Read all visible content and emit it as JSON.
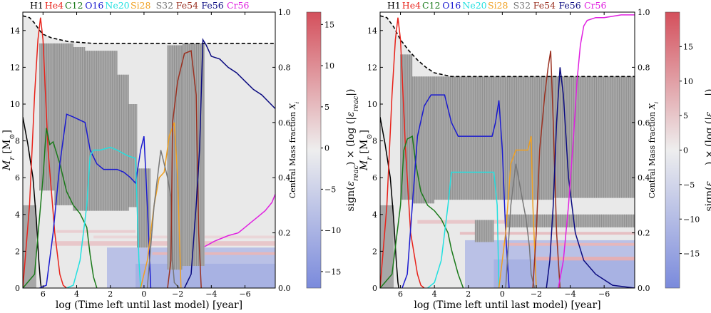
{
  "chart_data": [
    {
      "type": "line",
      "panel": "left",
      "xlabel": "log (Time left until last model) [year]",
      "ylabel": "M_r [M_⊙]",
      "ylabel_right": "Central Mass fraction X_i",
      "colorbar_label": "sign(ε_reac) × (log (|ε_reac|)",
      "xlim": [
        7.2,
        -7.8
      ],
      "ylim": [
        0,
        15
      ],
      "y2lim": [
        0,
        1
      ],
      "cbar_lim": [
        -17,
        16.5
      ],
      "xticks": [
        6,
        4,
        2,
        0,
        -2,
        -4,
        -6
      ],
      "yticks": [
        0,
        2,
        4,
        6,
        8,
        10,
        12,
        14
      ],
      "y2ticks": [
        "0.0",
        "0.2",
        "0.4",
        "0.6",
        "0.8",
        "1.0"
      ],
      "cbar_ticks": [
        15,
        10,
        5,
        0,
        -5,
        -10,
        -15
      ],
      "grid": false,
      "legend_position": "top",
      "legend": [
        "H1",
        "He4",
        "C12",
        "O16",
        "Ne20",
        "Si28",
        "S32",
        "Fe54",
        "Fe56",
        "Cr56"
      ],
      "total_mass": [
        [
          7.2,
          14.8
        ],
        [
          6.8,
          14.7
        ],
        [
          6.5,
          14.4
        ],
        [
          6.2,
          14.0
        ],
        [
          6.0,
          13.8
        ],
        [
          5.5,
          13.6
        ],
        [
          4.5,
          13.4
        ],
        [
          3.0,
          13.3
        ],
        [
          0,
          13.3
        ],
        [
          -3,
          13.3
        ],
        [
          -6,
          13.3
        ],
        [
          -7.8,
          13.3
        ]
      ],
      "series": [
        {
          "name": "H1",
          "color": "#000000",
          "x": [
            7.2,
            6.9,
            6.6,
            6.4,
            6.25,
            6.15,
            6.1
          ],
          "y": [
            0.62,
            0.52,
            0.4,
            0.25,
            0.1,
            0.02,
            0
          ]
        },
        {
          "name": "He4",
          "color": "#e8221a",
          "x": [
            7.2,
            6.8,
            6.5,
            6.3,
            6.15,
            6.0,
            5.7,
            5.3,
            5.0,
            4.8,
            4.6
          ],
          "y": [
            0.0,
            0.3,
            0.7,
            0.9,
            0.98,
            0.9,
            0.5,
            0.2,
            0.05,
            0.01,
            0
          ]
        },
        {
          "name": "C12",
          "color": "#1a7a1a",
          "x": [
            7.2,
            6.5,
            6.0,
            5.8,
            5.6,
            5.4,
            5.0,
            4.6,
            4.2,
            3.8,
            3.4,
            3.2,
            3.0,
            2.8
          ],
          "y": [
            0,
            0.05,
            0.4,
            0.58,
            0.52,
            0.53,
            0.45,
            0.35,
            0.3,
            0.27,
            0.22,
            0.12,
            0.04,
            0
          ]
        },
        {
          "name": "O16",
          "color": "#1a1ad0",
          "x": [
            6.2,
            5.8,
            5.4,
            5.0,
            4.6,
            4.2,
            3.5,
            3.2,
            2.8,
            2.4,
            2.0,
            1.6,
            1.2,
            0.8,
            0.5,
            0.2,
            0.0,
            -0.2,
            -0.4
          ],
          "y": [
            0,
            0.01,
            0.2,
            0.45,
            0.63,
            0.62,
            0.6,
            0.5,
            0.45,
            0.43,
            0.43,
            0.43,
            0.42,
            0.4,
            0.38,
            0.5,
            0.55,
            0.3,
            0
          ]
        },
        {
          "name": "Ne20",
          "color": "#22e0e0",
          "x": [
            4.6,
            4.2,
            3.8,
            3.4,
            3.2,
            3.0,
            2.6,
            2.0,
            1.6,
            1.0,
            0.5,
            0.3,
            0.2
          ],
          "y": [
            0,
            0.01,
            0.1,
            0.3,
            0.48,
            0.5,
            0.5,
            0.51,
            0.5,
            0.48,
            0.47,
            0.1,
            0
          ]
        },
        {
          "name": "Si28",
          "color": "#f0a020",
          "x": [
            0.2,
            -0.2,
            -0.6,
            -0.9,
            -1.2,
            -1.5,
            -1.8,
            -2.0,
            -2.2
          ],
          "y": [
            0,
            0.1,
            0.3,
            0.4,
            0.42,
            0.55,
            0.6,
            0.4,
            0
          ]
        },
        {
          "name": "S32",
          "color": "#777777",
          "x": [
            -0.2,
            -0.6,
            -1.0,
            -1.4,
            -1.6,
            -1.7,
            -1.8,
            -2.1
          ],
          "y": [
            0,
            0.3,
            0.5,
            0.4,
            0.33,
            0.1,
            0.02,
            0
          ]
        },
        {
          "name": "Fe54",
          "color": "#9a3020",
          "x": [
            -1.4,
            -1.6,
            -1.7,
            -2.0,
            -2.4,
            -2.8,
            -3.1,
            -3.25,
            -3.4
          ],
          "y": [
            0,
            0.1,
            0.6,
            0.75,
            0.85,
            0.86,
            0.7,
            0.2,
            0
          ]
        },
        {
          "name": "Fe56",
          "color": "#0a0a80",
          "x": [
            -2.4,
            -2.8,
            -3.1,
            -3.3,
            -3.5,
            -3.7,
            -4.0,
            -4.5,
            -5.0,
            -5.5,
            -6.0,
            -6.5,
            -7.0,
            -7.8
          ],
          "y": [
            0,
            0.05,
            0.3,
            0.5,
            0.9,
            0.88,
            0.84,
            0.83,
            0.8,
            0.78,
            0.75,
            0.72,
            0.7,
            0.65
          ]
        },
        {
          "name": "Cr56",
          "color": "#e020e0",
          "x": [
            -3.6,
            -4.2,
            -5.0,
            -5.6,
            -6.0,
            -6.4,
            -6.8,
            -7.2,
            -7.6,
            -7.8
          ],
          "y": [
            0.15,
            0.17,
            0.19,
            0.2,
            0.22,
            0.24,
            0.26,
            0.28,
            0.31,
            0.34
          ]
        }
      ]
    },
    {
      "type": "line",
      "panel": "right",
      "xlabel": "log (Time left until last model) [year]",
      "ylabel": "M_r [M_⊙]",
      "ylabel_right": "Central Mass fraction X_i",
      "colorbar_label": "sign(ε_reac) × (log (|ε_reac|)",
      "xlim": [
        7.2,
        -7.8
      ],
      "ylim": [
        0,
        15
      ],
      "y2lim": [
        0,
        1
      ],
      "cbar_lim": [
        -20,
        20
      ],
      "xticks": [
        6,
        4,
        2,
        0,
        -2,
        -4,
        -6
      ],
      "yticks": [
        0,
        2,
        4,
        6,
        8,
        10,
        12,
        14
      ],
      "y2ticks": [
        "0.0",
        "0.2",
        "0.4",
        "0.6",
        "0.8",
        "1.0"
      ],
      "cbar_ticks": [
        15,
        10,
        5,
        0,
        -5,
        -10,
        -15
      ],
      "grid": false,
      "legend_position": "top",
      "legend": [
        "H1",
        "He4",
        "C12",
        "O16",
        "Ne20",
        "Si28",
        "S32",
        "Fe54",
        "Fe56",
        "Cr56"
      ],
      "total_mass": [
        [
          7.2,
          14.8
        ],
        [
          6.8,
          14.7
        ],
        [
          6.4,
          14.2
        ],
        [
          6.0,
          13.5
        ],
        [
          5.5,
          12.9
        ],
        [
          5.0,
          12.4
        ],
        [
          4.5,
          12.0
        ],
        [
          4.0,
          11.7
        ],
        [
          3.0,
          11.5
        ],
        [
          1.0,
          11.5
        ],
        [
          -3,
          11.5
        ],
        [
          -7.8,
          11.5
        ]
      ],
      "series": [
        {
          "name": "H1",
          "color": "#000000",
          "x": [
            7.2,
            6.9,
            6.6,
            6.4,
            6.25,
            6.15,
            6.1
          ],
          "y": [
            0.62,
            0.52,
            0.4,
            0.25,
            0.1,
            0.02,
            0
          ]
        },
        {
          "name": "He4",
          "color": "#e8221a",
          "x": [
            7.2,
            6.8,
            6.5,
            6.3,
            6.15,
            6.0,
            5.7,
            5.4,
            5.0,
            4.8,
            4.6
          ],
          "y": [
            0.0,
            0.3,
            0.7,
            0.9,
            0.98,
            0.9,
            0.5,
            0.2,
            0.05,
            0.01,
            0
          ]
        },
        {
          "name": "C12",
          "color": "#1a7a1a",
          "x": [
            7.2,
            6.5,
            6.0,
            5.8,
            5.6,
            5.3,
            5.1,
            4.8,
            4.4,
            4.0,
            3.6,
            3.2,
            3.0,
            2.6,
            2.3
          ],
          "y": [
            0,
            0.05,
            0.3,
            0.5,
            0.54,
            0.55,
            0.45,
            0.35,
            0.3,
            0.28,
            0.25,
            0.2,
            0.14,
            0.05,
            0
          ]
        },
        {
          "name": "O16",
          "color": "#1a1ad0",
          "x": [
            5.9,
            5.6,
            5.3,
            5.0,
            4.6,
            4.2,
            3.8,
            3.4,
            3.0,
            2.6,
            2.0,
            1.5,
            1.0,
            0.6,
            0.4,
            0.2,
            0.0,
            -0.2,
            -0.4
          ],
          "y": [
            0,
            0.05,
            0.3,
            0.55,
            0.66,
            0.7,
            0.7,
            0.7,
            0.6,
            0.55,
            0.55,
            0.55,
            0.55,
            0.55,
            0.6,
            0.68,
            0.5,
            0.2,
            0
          ]
        },
        {
          "name": "Ne20",
          "color": "#22e0e0",
          "x": [
            4.4,
            4.0,
            3.6,
            3.2,
            3.0,
            2.6,
            2.2,
            1.6,
            1.0,
            0.5,
            0.3,
            0.2
          ],
          "y": [
            0,
            0.02,
            0.1,
            0.3,
            0.42,
            0.42,
            0.42,
            0.42,
            0.42,
            0.42,
            0.3,
            0
          ]
        },
        {
          "name": "Si28",
          "color": "#f0a020",
          "x": [
            0.2,
            -0.2,
            -0.5,
            -0.8,
            -1.2,
            -1.5,
            -1.7,
            -1.8,
            -2.0
          ],
          "y": [
            0,
            0.2,
            0.45,
            0.5,
            0.5,
            0.5,
            0.55,
            0.3,
            0
          ]
        },
        {
          "name": "S32",
          "color": "#777777",
          "x": [
            -0.2,
            -0.5,
            -0.8,
            -1.1,
            -1.4,
            -1.6,
            -1.7,
            -1.9
          ],
          "y": [
            0,
            0.3,
            0.45,
            0.35,
            0.25,
            0.15,
            0.05,
            0
          ]
        },
        {
          "name": "Fe54",
          "color": "#9a3020",
          "x": [
            -1.8,
            -2.0,
            -2.2,
            -2.5,
            -2.7,
            -2.85,
            -3.0,
            -3.2,
            -3.4
          ],
          "y": [
            0,
            0.2,
            0.5,
            0.7,
            0.8,
            0.86,
            0.6,
            0.2,
            0
          ]
        },
        {
          "name": "Fe56",
          "color": "#0a0a80",
          "x": [
            -2.6,
            -2.8,
            -3.0,
            -3.2,
            -3.4,
            -3.6,
            -3.9,
            -4.3,
            -4.8,
            -5.5,
            -6.5,
            -7.8
          ],
          "y": [
            0,
            0.1,
            0.3,
            0.6,
            0.8,
            0.7,
            0.4,
            0.2,
            0.1,
            0.05,
            0.01,
            0
          ]
        },
        {
          "name": "Cr56",
          "color": "#e020e0",
          "x": [
            -3.3,
            -3.6,
            -3.9,
            -4.2,
            -4.4,
            -4.6,
            -4.8,
            -5.0,
            -5.5,
            -6.0,
            -7.0,
            -7.8
          ],
          "y": [
            0,
            0.1,
            0.3,
            0.55,
            0.75,
            0.88,
            0.95,
            0.97,
            0.98,
            0.98,
            0.99,
            0.99
          ]
        }
      ]
    }
  ]
}
